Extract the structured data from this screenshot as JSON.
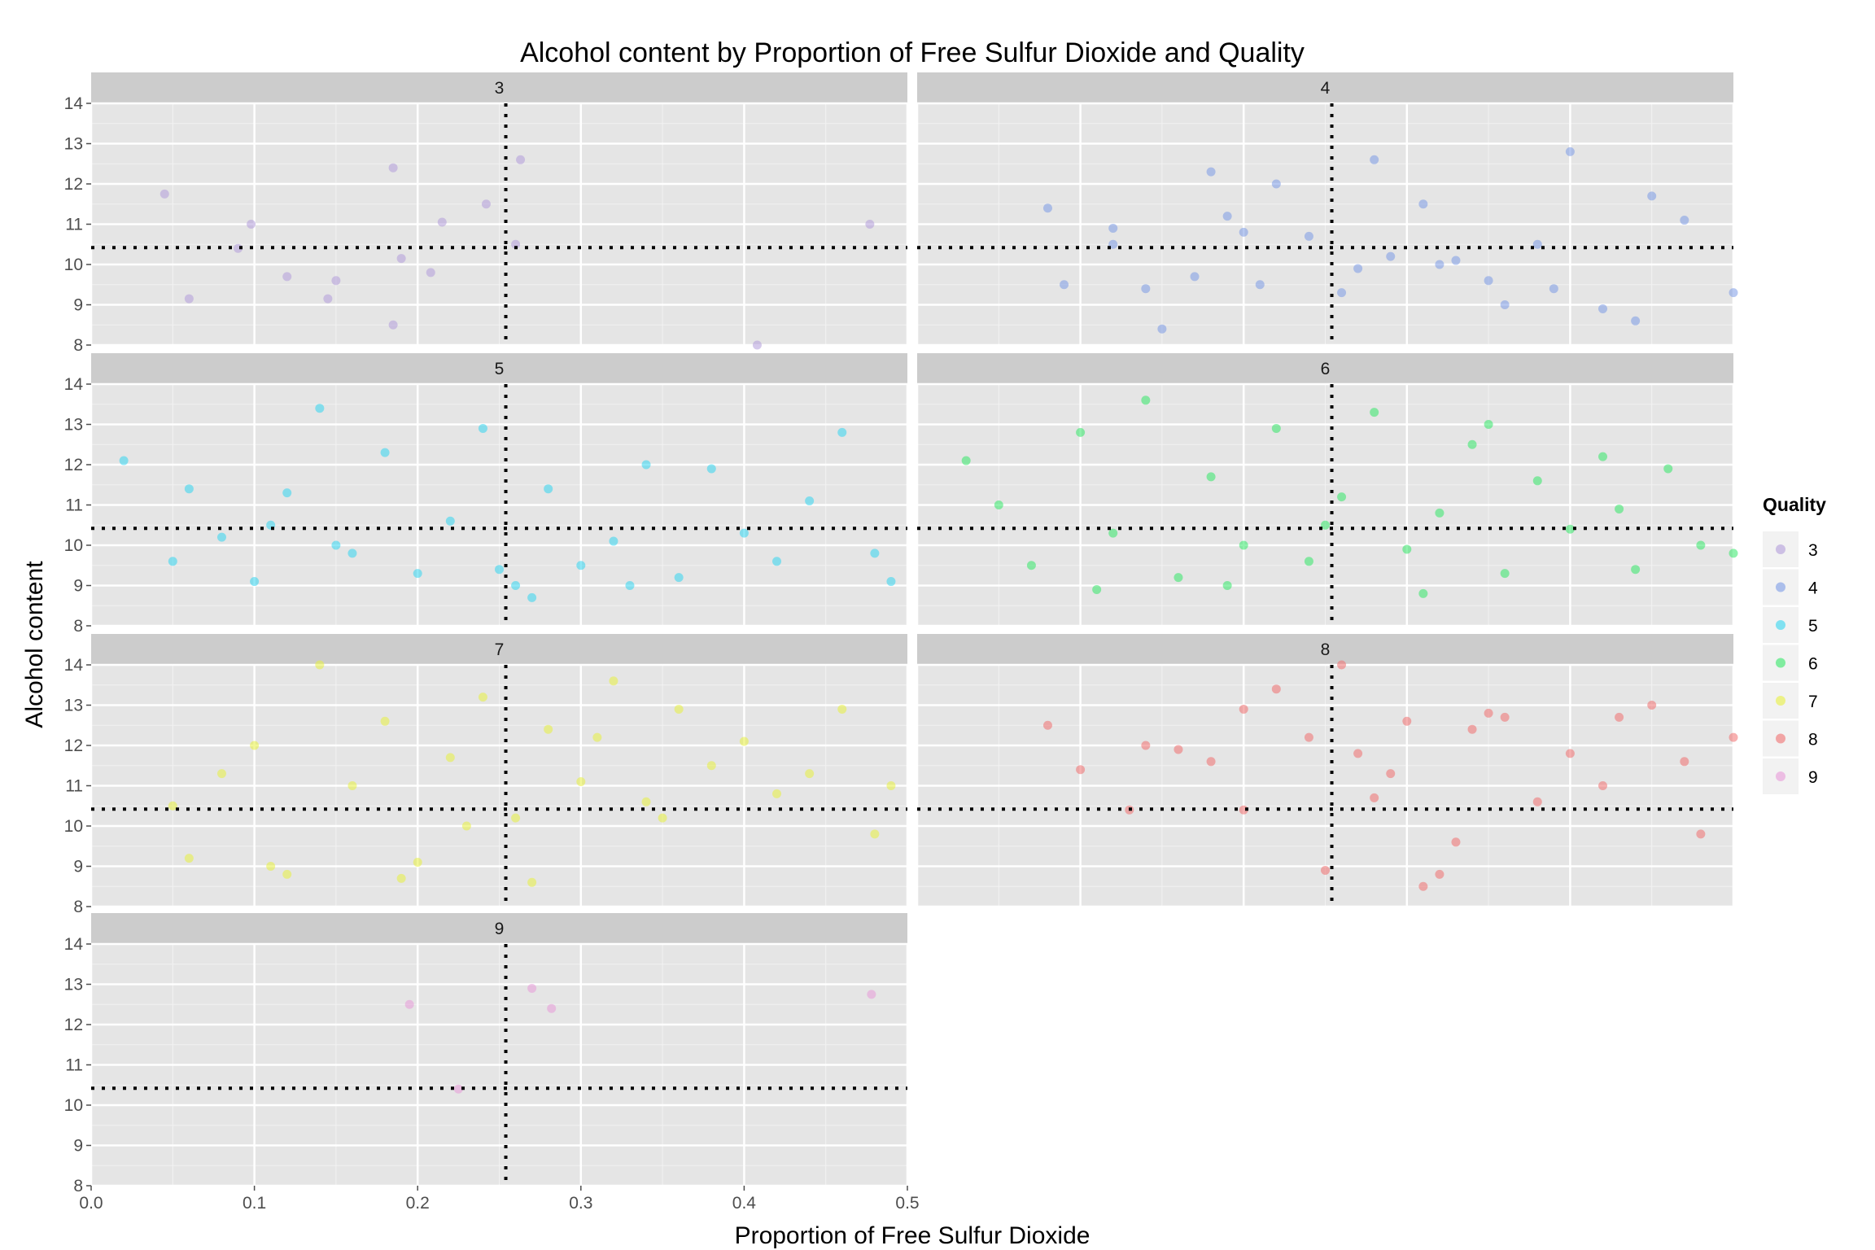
{
  "chart_data": {
    "type": "scatter",
    "title": "Alcohol content by Proportion of Free Sulfur Dioxide and Quality",
    "xlabel": "Proportion of Free Sulfur Dioxide",
    "ylabel": "Alcohol content",
    "xlim": [
      0.0,
      0.5
    ],
    "ylim": [
      8,
      14
    ],
    "x_ticks": [
      "0.0",
      "0.1",
      "0.2",
      "0.3",
      "0.4",
      "0.5"
    ],
    "y_ticks": [
      "8",
      "9",
      "10",
      "11",
      "12",
      "13",
      "14"
    ],
    "reference_lines": {
      "x": 0.254,
      "y": 10.42,
      "style": "dotted black"
    },
    "grid": true,
    "legend": {
      "title": "Quality",
      "position": "right"
    },
    "facets": [
      {
        "label": "3",
        "color": "#b39ddb",
        "points": [
          [
            0.045,
            11.75
          ],
          [
            0.06,
            9.15
          ],
          [
            0.09,
            10.4
          ],
          [
            0.098,
            11.0
          ],
          [
            0.12,
            9.7
          ],
          [
            0.145,
            9.15
          ],
          [
            0.15,
            9.6
          ],
          [
            0.185,
            12.4
          ],
          [
            0.185,
            8.5
          ],
          [
            0.19,
            10.15
          ],
          [
            0.208,
            9.8
          ],
          [
            0.215,
            11.05
          ],
          [
            0.242,
            11.5
          ],
          [
            0.26,
            10.5
          ],
          [
            0.263,
            12.6
          ],
          [
            0.408,
            8.0
          ],
          [
            0.477,
            11.0
          ]
        ]
      },
      {
        "label": "4",
        "color": "#7b9be6",
        "points": [
          [
            0.08,
            11.4
          ],
          [
            0.09,
            9.5
          ],
          [
            0.12,
            10.5
          ],
          [
            0.14,
            9.4
          ],
          [
            0.15,
            8.4
          ],
          [
            0.18,
            12.3
          ],
          [
            0.2,
            10.8
          ],
          [
            0.22,
            12.0
          ],
          [
            0.26,
            9.3
          ],
          [
            0.28,
            12.6
          ],
          [
            0.32,
            10.0
          ],
          [
            0.35,
            9.6
          ],
          [
            0.38,
            10.5
          ],
          [
            0.4,
            12.8
          ],
          [
            0.42,
            8.9
          ],
          [
            0.45,
            11.7
          ],
          [
            0.47,
            11.1
          ],
          [
            0.36,
            9.0
          ],
          [
            0.29,
            10.2
          ],
          [
            0.17,
            9.7
          ],
          [
            0.12,
            10.9
          ],
          [
            0.24,
            10.7
          ],
          [
            0.33,
            10.1
          ],
          [
            0.5,
            9.3
          ],
          [
            0.44,
            8.6
          ],
          [
            0.27,
            9.9
          ],
          [
            0.21,
            9.5
          ],
          [
            0.19,
            11.2
          ],
          [
            0.31,
            11.5
          ],
          [
            0.39,
            9.4
          ]
        ]
      },
      {
        "label": "5",
        "color": "#33d6f0",
        "points": [
          [
            0.02,
            12.1
          ],
          [
            0.05,
            9.6
          ],
          [
            0.08,
            10.2
          ],
          [
            0.1,
            9.1
          ],
          [
            0.12,
            11.3
          ],
          [
            0.14,
            13.4
          ],
          [
            0.16,
            9.8
          ],
          [
            0.18,
            12.3
          ],
          [
            0.2,
            9.3
          ],
          [
            0.22,
            10.6
          ],
          [
            0.24,
            12.9
          ],
          [
            0.26,
            9.0
          ],
          [
            0.28,
            11.4
          ],
          [
            0.3,
            9.5
          ],
          [
            0.32,
            10.1
          ],
          [
            0.34,
            12.0
          ],
          [
            0.36,
            9.2
          ],
          [
            0.38,
            11.9
          ],
          [
            0.4,
            10.3
          ],
          [
            0.42,
            9.6
          ],
          [
            0.44,
            11.1
          ],
          [
            0.46,
            12.8
          ],
          [
            0.48,
            9.8
          ],
          [
            0.49,
            9.1
          ],
          [
            0.25,
            9.4
          ],
          [
            0.15,
            10.0
          ],
          [
            0.27,
            8.7
          ],
          [
            0.33,
            9.0
          ],
          [
            0.11,
            10.5
          ],
          [
            0.06,
            11.4
          ]
        ]
      },
      {
        "label": "6",
        "color": "#33e868",
        "points": [
          [
            0.03,
            12.1
          ],
          [
            0.05,
            11.0
          ],
          [
            0.07,
            9.5
          ],
          [
            0.1,
            12.8
          ],
          [
            0.12,
            10.3
          ],
          [
            0.14,
            13.6
          ],
          [
            0.16,
            9.2
          ],
          [
            0.18,
            11.7
          ],
          [
            0.2,
            10.0
          ],
          [
            0.22,
            12.9
          ],
          [
            0.24,
            9.6
          ],
          [
            0.26,
            11.2
          ],
          [
            0.28,
            13.3
          ],
          [
            0.3,
            9.9
          ],
          [
            0.32,
            10.8
          ],
          [
            0.34,
            12.5
          ],
          [
            0.36,
            9.3
          ],
          [
            0.38,
            11.6
          ],
          [
            0.4,
            10.4
          ],
          [
            0.42,
            12.2
          ],
          [
            0.44,
            9.4
          ],
          [
            0.46,
            11.9
          ],
          [
            0.48,
            10.0
          ],
          [
            0.5,
            9.8
          ],
          [
            0.25,
            10.5
          ],
          [
            0.19,
            9.0
          ],
          [
            0.31,
            8.8
          ],
          [
            0.11,
            8.9
          ],
          [
            0.35,
            13.0
          ],
          [
            0.43,
            10.9
          ]
        ]
      },
      {
        "label": "7",
        "color": "#e8f040",
        "points": [
          [
            0.05,
            10.5
          ],
          [
            0.06,
            9.2
          ],
          [
            0.08,
            11.3
          ],
          [
            0.1,
            12.0
          ],
          [
            0.12,
            8.8
          ],
          [
            0.14,
            14.0
          ],
          [
            0.16,
            11.0
          ],
          [
            0.18,
            12.6
          ],
          [
            0.2,
            9.1
          ],
          [
            0.22,
            11.7
          ],
          [
            0.24,
            13.2
          ],
          [
            0.26,
            10.2
          ],
          [
            0.28,
            12.4
          ],
          [
            0.3,
            11.1
          ],
          [
            0.32,
            13.6
          ],
          [
            0.34,
            10.6
          ],
          [
            0.36,
            12.9
          ],
          [
            0.38,
            11.5
          ],
          [
            0.4,
            12.1
          ],
          [
            0.42,
            10.8
          ],
          [
            0.44,
            11.3
          ],
          [
            0.46,
            12.9
          ],
          [
            0.48,
            9.8
          ],
          [
            0.49,
            11.0
          ],
          [
            0.19,
            8.7
          ],
          [
            0.27,
            8.6
          ],
          [
            0.11,
            9.0
          ],
          [
            0.35,
            10.2
          ],
          [
            0.23,
            10.0
          ],
          [
            0.31,
            12.2
          ]
        ]
      },
      {
        "label": "8",
        "color": "#f07070",
        "points": [
          [
            0.08,
            12.5
          ],
          [
            0.1,
            11.4
          ],
          [
            0.13,
            10.4
          ],
          [
            0.16,
            11.9
          ],
          [
            0.18,
            11.6
          ],
          [
            0.2,
            12.9
          ],
          [
            0.22,
            13.4
          ],
          [
            0.24,
            12.2
          ],
          [
            0.25,
            8.9
          ],
          [
            0.26,
            14.0
          ],
          [
            0.27,
            11.8
          ],
          [
            0.28,
            10.7
          ],
          [
            0.3,
            12.6
          ],
          [
            0.32,
            8.8
          ],
          [
            0.33,
            9.6
          ],
          [
            0.34,
            12.4
          ],
          [
            0.36,
            12.7
          ],
          [
            0.38,
            10.6
          ],
          [
            0.4,
            11.8
          ],
          [
            0.42,
            11.0
          ],
          [
            0.43,
            12.7
          ],
          [
            0.45,
            13.0
          ],
          [
            0.47,
            11.6
          ],
          [
            0.48,
            9.8
          ],
          [
            0.5,
            12.2
          ],
          [
            0.2,
            10.4
          ],
          [
            0.29,
            11.3
          ],
          [
            0.35,
            12.8
          ],
          [
            0.31,
            8.5
          ],
          [
            0.14,
            12.0
          ]
        ]
      },
      {
        "label": "9",
        "color": "#e89ad8",
        "points": [
          [
            0.195,
            12.5
          ],
          [
            0.225,
            10.4
          ],
          [
            0.27,
            12.9
          ],
          [
            0.282,
            12.4
          ],
          [
            0.478,
            12.75
          ]
        ]
      }
    ],
    "legend_entries": [
      "3",
      "4",
      "5",
      "6",
      "7",
      "8",
      "9"
    ],
    "legend_colors": [
      "#b39ddb",
      "#7b9be6",
      "#33d6f0",
      "#33e868",
      "#e8f040",
      "#f07070",
      "#e89ad8"
    ]
  }
}
